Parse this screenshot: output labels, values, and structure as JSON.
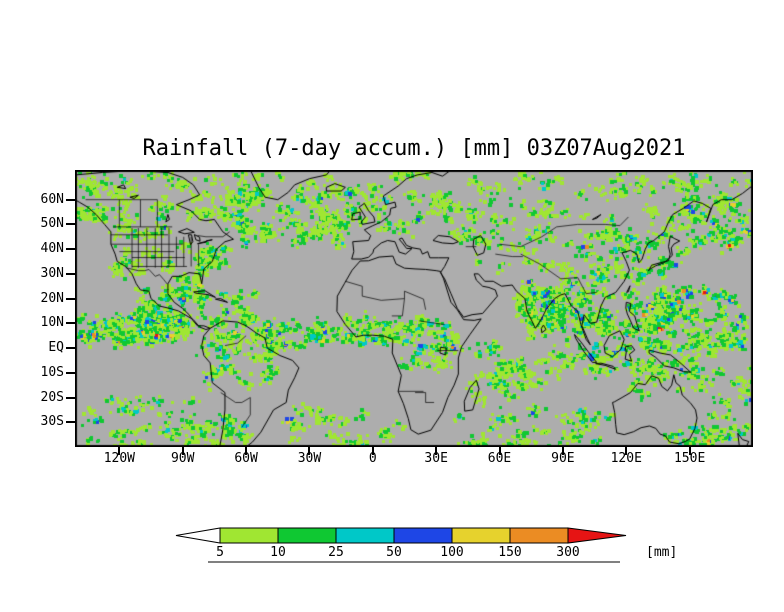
{
  "chart_data": {
    "type": "heatmap",
    "title": "Rainfall (7-day accum.) [mm] 03Z07Aug2021",
    "variable": "Rainfall (7-day accum.)",
    "units": "[mm]",
    "valid_time": "03Z07Aug2021",
    "projection": "latlon",
    "lon_range": [
      -141,
      180
    ],
    "lat_range": [
      -40,
      72
    ],
    "lat_ticks": [
      {
        "label": "60N",
        "deg": 60
      },
      {
        "label": "50N",
        "deg": 50
      },
      {
        "label": "40N",
        "deg": 40
      },
      {
        "label": "30N",
        "deg": 30
      },
      {
        "label": "20N",
        "deg": 20
      },
      {
        "label": "10N",
        "deg": 10
      },
      {
        "label": "EQ",
        "deg": 0
      },
      {
        "label": "10S",
        "deg": -10
      },
      {
        "label": "20S",
        "deg": -20
      },
      {
        "label": "30S",
        "deg": -30
      }
    ],
    "lon_ticks": [
      {
        "label": "120W",
        "deg": -120
      },
      {
        "label": "90W",
        "deg": -90
      },
      {
        "label": "60W",
        "deg": -60
      },
      {
        "label": "30W",
        "deg": -30
      },
      {
        "label": "0",
        "deg": 0
      },
      {
        "label": "30E",
        "deg": 30
      },
      {
        "label": "60E",
        "deg": 60
      },
      {
        "label": "90E",
        "deg": 90
      },
      {
        "label": "120E",
        "deg": 120
      },
      {
        "label": "150E",
        "deg": 150
      }
    ],
    "colorbar": {
      "levels": [
        "5",
        "10",
        "25",
        "50",
        "100",
        "150",
        "300"
      ],
      "colors": [
        "#ffffff",
        "#a0e632",
        "#0fc832",
        "#00c8c8",
        "#1e46e6",
        "#e6d22d",
        "#eb8c23",
        "#e61414"
      ],
      "units_label": "[mm]"
    },
    "map_colors": {
      "background": "#adadad",
      "coastline": "#000000",
      "frame": "#000000"
    },
    "rain_regions": [
      {
        "name": "canada",
        "lon": [
          -141,
          -60
        ],
        "lat": [
          52,
          71
        ],
        "clusters": 48,
        "spread": 2.2,
        "cells": 9,
        "weights": [
          3,
          4,
          1.5,
          0.3,
          0,
          0,
          0
        ]
      },
      {
        "name": "alaska-gulf",
        "lon": [
          -141,
          -125
        ],
        "lat": [
          52,
          61
        ],
        "clusters": 10,
        "spread": 1.8,
        "cells": 10,
        "weights": [
          2,
          3,
          2,
          0.6,
          0,
          0.1,
          0
        ]
      },
      {
        "name": "us-plains",
        "lon": [
          -124,
          -85
        ],
        "lat": [
          30,
          50
        ],
        "clusters": 26,
        "spread": 1.8,
        "cells": 8,
        "weights": [
          3,
          4,
          1.5,
          0.4,
          0,
          0.1,
          0
        ]
      },
      {
        "name": "us-east-coast",
        "lon": [
          -83,
          -71
        ],
        "lat": [
          31,
          41
        ],
        "clusters": 13,
        "spread": 1.5,
        "cells": 15,
        "weights": [
          0,
          1,
          2,
          4,
          0.2,
          0.6,
          0.2
        ]
      },
      {
        "name": "gulf-of-mexico",
        "lon": [
          -98,
          -82
        ],
        "lat": [
          23,
          31
        ],
        "clusters": 8,
        "spread": 1.4,
        "cells": 9,
        "weights": [
          1.5,
          3,
          2,
          0.8,
          0,
          0.2,
          0
        ]
      },
      {
        "name": "north-atlantic",
        "lon": [
          -66,
          -8
        ],
        "lat": [
          42,
          66
        ],
        "clusters": 50,
        "spread": 2.2,
        "cells": 12,
        "weights": [
          2,
          4,
          2.5,
          1.2,
          0,
          0.2,
          0
        ]
      },
      {
        "name": "greenland-fringe",
        "lon": [
          -58,
          -20
        ],
        "lat": [
          58,
          71
        ],
        "clusters": 10,
        "spread": 1.5,
        "cells": 7,
        "weights": [
          3,
          4,
          1,
          0,
          0,
          0,
          0
        ]
      },
      {
        "name": "europe",
        "lon": [
          -10,
          45
        ],
        "lat": [
          44,
          71
        ],
        "clusters": 32,
        "spread": 2,
        "cells": 9,
        "weights": [
          3,
          4,
          1.5,
          0.4,
          0,
          0,
          0
        ]
      },
      {
        "name": "siberia",
        "lon": [
          45,
          179
        ],
        "lat": [
          48,
          71
        ],
        "clusters": 55,
        "spread": 2.2,
        "cells": 9,
        "weights": [
          3,
          4,
          1.5,
          0.4,
          0,
          0.05,
          0
        ]
      },
      {
        "name": "central-asia",
        "lon": [
          55,
          100
        ],
        "lat": [
          33,
          48
        ],
        "clusters": 16,
        "spread": 1.8,
        "cells": 7,
        "weights": [
          3,
          3.5,
          1,
          0.2,
          0,
          0,
          0
        ]
      },
      {
        "name": "kamchatka-npac",
        "lon": [
          145,
          180
        ],
        "lat": [
          40,
          62
        ],
        "clusters": 22,
        "spread": 2,
        "cells": 11,
        "weights": [
          1,
          3,
          3,
          1.4,
          0.2,
          0.8,
          0.25
        ]
      },
      {
        "name": "japan-korea-china",
        "lon": [
          100,
          146
        ],
        "lat": [
          28,
          48
        ],
        "clusters": 28,
        "spread": 2,
        "cells": 11,
        "weights": [
          1.5,
          3,
          3,
          1.4,
          0.2,
          0.5,
          0.1
        ]
      },
      {
        "name": "mexico-centam",
        "lon": [
          -112,
          -83
        ],
        "lat": [
          10,
          25
        ],
        "clusters": 24,
        "spread": 1.8,
        "cells": 11,
        "weights": [
          1,
          3,
          3,
          1.4,
          0.2,
          0.5,
          0.2
        ]
      },
      {
        "name": "epac-itcz",
        "lon": [
          -140,
          -86
        ],
        "lat": [
          2,
          13
        ],
        "clusters": 44,
        "spread": 2,
        "cells": 14,
        "weights": [
          0.5,
          2,
          3,
          2,
          0.3,
          1.4,
          0.7
        ]
      },
      {
        "name": "epac-itcz-core",
        "lon": [
          -128,
          -100
        ],
        "lat": [
          5,
          11
        ],
        "clusters": 13,
        "spread": 1.5,
        "cells": 15,
        "weights": [
          0,
          0.5,
          1,
          2,
          0.4,
          3,
          2
        ]
      },
      {
        "name": "caribbean",
        "lon": [
          -85,
          -56
        ],
        "lat": [
          10,
          24
        ],
        "clusters": 20,
        "spread": 1.8,
        "cells": 9,
        "weights": [
          1.5,
          3,
          2,
          0.9,
          0.1,
          0.3,
          0.1
        ]
      },
      {
        "name": "south-america-n",
        "lon": [
          -79,
          -48
        ],
        "lat": [
          -14,
          8
        ],
        "clusters": 32,
        "spread": 2,
        "cells": 10,
        "weights": [
          2,
          3.5,
          2,
          0.9,
          0.1,
          0.3,
          0.1
        ]
      },
      {
        "name": "south-chile",
        "lon": [
          -78,
          -60
        ],
        "lat": [
          -40,
          -27
        ],
        "clusters": 13,
        "spread": 1.6,
        "cells": 11,
        "weights": [
          0.5,
          2,
          2.5,
          2,
          0.2,
          0.9,
          0.4
        ]
      },
      {
        "name": "sepac-track",
        "lon": [
          -140,
          -80
        ],
        "lat": [
          -40,
          -20
        ],
        "clusters": 28,
        "spread": 2.2,
        "cells": 9,
        "weights": [
          2,
          3.5,
          2,
          0.6,
          0,
          0.15,
          0
        ]
      },
      {
        "name": "atlantic-itcz",
        "lon": [
          -52,
          -12
        ],
        "lat": [
          1,
          11
        ],
        "clusters": 26,
        "spread": 1.8,
        "cells": 12,
        "weights": [
          1,
          3,
          3,
          1.4,
          0.2,
          0.9,
          0.35
        ]
      },
      {
        "name": "satl-track",
        "lon": [
          -45,
          12
        ],
        "lat": [
          -40,
          -22
        ],
        "clusters": 20,
        "spread": 2.2,
        "cells": 9,
        "weights": [
          2.5,
          3.5,
          1.5,
          0.4,
          0,
          0.1,
          0
        ]
      },
      {
        "name": "west-africa",
        "lon": [
          -16,
          12
        ],
        "lat": [
          3,
          13
        ],
        "clusters": 20,
        "spread": 1.6,
        "cells": 12,
        "weights": [
          0.8,
          3,
          2.5,
          1.4,
          0.3,
          0.9,
          0.35
        ]
      },
      {
        "name": "central-africa",
        "lon": [
          12,
          38
        ],
        "lat": [
          -8,
          12
        ],
        "clusters": 28,
        "spread": 2,
        "cells": 10,
        "weights": [
          1.5,
          3.5,
          2.5,
          1.1,
          0.15,
          0.35,
          0.12
        ]
      },
      {
        "name": "madagascar-swio",
        "lon": [
          38,
          80
        ],
        "lat": [
          -28,
          -8
        ],
        "clusters": 18,
        "spread": 2,
        "cells": 8,
        "weights": [
          2.5,
          3.5,
          1.5,
          0.4,
          0,
          0.1,
          0
        ]
      },
      {
        "name": "sio-track",
        "lon": [
          45,
          115
        ],
        "lat": [
          -40,
          -24
        ],
        "clusters": 26,
        "spread": 2.2,
        "cells": 10,
        "weights": [
          2,
          3.5,
          2.5,
          0.9,
          0.1,
          0.25,
          0
        ]
      },
      {
        "name": "india-monsoon",
        "lon": [
          68,
          90
        ],
        "lat": [
          8,
          27
        ],
        "clusters": 28,
        "spread": 1.8,
        "cells": 12,
        "weights": [
          0.8,
          2.5,
          2.5,
          2,
          0.3,
          1.1,
          0.6
        ]
      },
      {
        "name": "bay-of-bengal-core",
        "lon": [
          80,
          98
        ],
        "lat": [
          12,
          23
        ],
        "clusters": 15,
        "spread": 1.6,
        "cells": 14,
        "weights": [
          0,
          0.6,
          1.2,
          2,
          0.4,
          3,
          2
        ]
      },
      {
        "name": "india-west-coast",
        "lon": [
          72,
          76
        ],
        "lat": [
          9,
          20
        ],
        "clusters": 8,
        "spread": 0.9,
        "cells": 11,
        "weights": [
          0,
          0.5,
          1,
          1.5,
          0.3,
          2.5,
          2
        ]
      },
      {
        "name": "himalaya-schina",
        "lon": [
          88,
          112
        ],
        "lat": [
          20,
          33
        ],
        "clusters": 16,
        "spread": 1.8,
        "cells": 10,
        "weights": [
          1.5,
          3,
          2.5,
          1.1,
          0.15,
          0.35,
          0.1
        ]
      },
      {
        "name": "indochina",
        "lon": [
          95,
          112
        ],
        "lat": [
          5,
          20
        ],
        "clusters": 18,
        "spread": 1.7,
        "cells": 11,
        "weights": [
          1,
          2.5,
          3,
          1.7,
          0.3,
          0.7,
          0.25
        ]
      },
      {
        "name": "maritime-continent",
        "lon": [
          95,
          150
        ],
        "lat": [
          -10,
          5
        ],
        "clusters": 34,
        "spread": 2,
        "cells": 10,
        "weights": [
          1.5,
          3,
          2.5,
          1.4,
          0.2,
          0.45,
          0.12
        ]
      },
      {
        "name": "philippines-wpac",
        "lon": [
          118,
          146
        ],
        "lat": [
          6,
          22
        ],
        "clusters": 28,
        "spread": 1.8,
        "cells": 13,
        "weights": [
          0.5,
          1.5,
          2.5,
          2.5,
          0.4,
          1.8,
          0.9
        ]
      },
      {
        "name": "wpac-typhoon-core",
        "lon": [
          134,
          170
        ],
        "lat": [
          12,
          25
        ],
        "clusters": 17,
        "spread": 1.8,
        "cells": 15,
        "weights": [
          0,
          0.5,
          1.2,
          2,
          0.5,
          3,
          2.1
        ]
      },
      {
        "name": "wpac-equatorial",
        "lon": [
          148,
          180
        ],
        "lat": [
          -2,
          14
        ],
        "clusters": 22,
        "spread": 2,
        "cells": 11,
        "weights": [
          1,
          2.5,
          3,
          1.7,
          0.25,
          0.7,
          0.25
        ]
      },
      {
        "name": "equatorial-io",
        "lon": [
          50,
          96
        ],
        "lat": [
          -12,
          6
        ],
        "clusters": 25,
        "spread": 2,
        "cells": 9,
        "weights": [
          2,
          3,
          2,
          0.9,
          0.1,
          0.35,
          0.1
        ]
      },
      {
        "name": "australia-north",
        "lon": [
          120,
          150
        ],
        "lat": [
          -20,
          -10
        ],
        "clusters": 9,
        "spread": 1.6,
        "cells": 6,
        "weights": [
          3,
          3,
          1,
          0.15,
          0,
          0,
          0
        ]
      },
      {
        "name": "australia-se-nz",
        "lon": [
          140,
          180
        ],
        "lat": [
          -40,
          -26
        ],
        "clusters": 20,
        "spread": 2,
        "cells": 10,
        "weights": [
          1,
          3,
          3,
          1.4,
          0.2,
          0.7,
          0.25
        ]
      },
      {
        "name": "spcz",
        "lon": [
          152,
          180
        ],
        "lat": [
          -22,
          -6
        ],
        "clusters": 14,
        "spread": 1.8,
        "cells": 9,
        "weights": [
          1.5,
          3,
          2.5,
          0.9,
          0.1,
          0.25,
          0.08
        ]
      },
      {
        "name": "caspian-area",
        "lon": [
          40,
          62
        ],
        "lat": [
          34,
          47
        ],
        "clusters": 8,
        "spread": 1.5,
        "cells": 6,
        "weights": [
          3,
          3,
          1,
          0.15,
          0,
          0,
          0
        ]
      }
    ]
  }
}
